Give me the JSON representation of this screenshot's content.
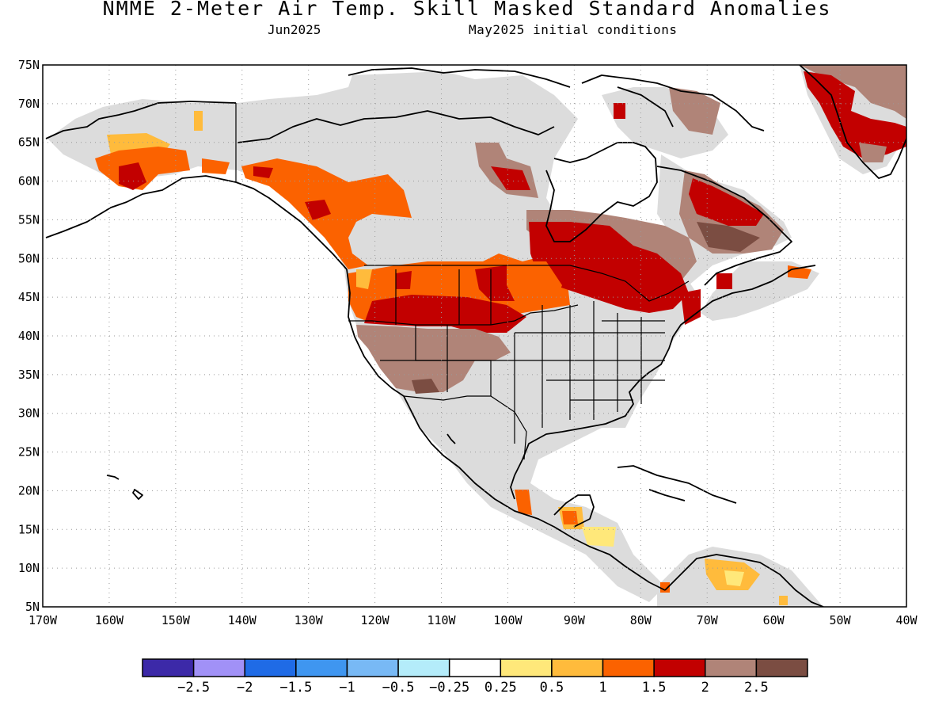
{
  "title": "NMME 2-Meter Air Temp. Skill Masked Standard Anomalies",
  "subtitle_left": "Jun2025",
  "subtitle_right": "May2025 initial conditions",
  "map": {
    "lon_range": [
      -170,
      -40
    ],
    "lat_range": [
      5,
      75
    ],
    "lat_labels": [
      "5N",
      "10N",
      "15N",
      "20N",
      "25N",
      "30N",
      "35N",
      "40N",
      "45N",
      "50N",
      "55N",
      "60N",
      "65N",
      "70N",
      "75N"
    ],
    "lon_labels": [
      "170W",
      "160W",
      "150W",
      "140W",
      "130W",
      "120W",
      "110W",
      "100W",
      "90W",
      "80W",
      "70W",
      "60W",
      "50W",
      "40W"
    ],
    "grid": "dotted",
    "land_no_skill_color": "#dcdcdc"
  },
  "colorbar": {
    "colors": [
      "#3c29a8",
      "#a191f7",
      "#1f6be6",
      "#3f96f0",
      "#78b9f5",
      "#b4ecfa",
      "#ffffff",
      "#ffe87a",
      "#ffbb3c",
      "#fb6200",
      "#c20000",
      "#b08478",
      "#7b4d42"
    ],
    "labels": [
      "-2.5",
      "-2",
      "-1.5",
      "-1",
      "-0.5",
      "-0.25",
      "0.25",
      "0.5",
      "1",
      "1.5",
      "2",
      "2.5"
    ]
  }
}
